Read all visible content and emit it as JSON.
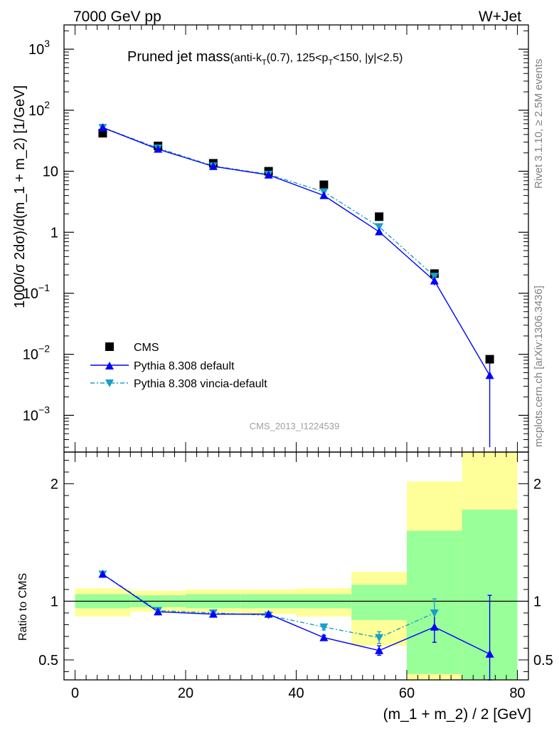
{
  "header": {
    "left_label": "7000 GeV pp",
    "right_label": "W+Jet"
  },
  "title": {
    "main": "Pruned jet mass",
    "sub_open": "(anti-k",
    "sub_k_sub": "T",
    "sub_mid": "(0.7), 125<p",
    "sub_p_sub": "T",
    "sub_close": "<150, |y|<2.5)"
  },
  "side_labels": {
    "rivet": "Rivet 3.1.10, ≥ 2.5M events",
    "mcplots": "mcplots.cern.ch [arXiv:1306.3436]"
  },
  "watermark": "CMS_2013_I1224539",
  "legend": {
    "entries": [
      {
        "label": "CMS",
        "color": "#000000",
        "marker": "square"
      },
      {
        "label": "Pythia 8.308 default",
        "color": "#0000ff",
        "marker": "triangle-up"
      },
      {
        "label": "Pythia 8.308 vincia-default",
        "color": "#1a9fc9",
        "marker": "triangle-down"
      }
    ]
  },
  "chart_data": [
    {
      "type": "scatter",
      "panel": "main",
      "ylabel": "1000/σ 2dσ)/d(m_1 + m_2) [1/GeV]",
      "yscale": "log",
      "ylim": [
        0.00025,
        2500
      ],
      "xlim": [
        -2,
        82
      ],
      "yticks": [
        {
          "value": 0.001,
          "base": "10",
          "exp": "−3"
        },
        {
          "value": 0.01,
          "base": "10",
          "exp": "−2"
        },
        {
          "value": 0.1,
          "base": "10",
          "exp": "−1"
        },
        {
          "value": 1,
          "base": "1",
          "exp": ""
        },
        {
          "value": 10,
          "base": "10",
          "exp": ""
        },
        {
          "value": 100,
          "base": "10",
          "exp": "2"
        },
        {
          "value": 1000,
          "base": "10",
          "exp": "3"
        }
      ],
      "x": [
        5,
        15,
        25,
        35,
        45,
        55,
        65,
        75
      ],
      "series": [
        {
          "name": "CMS",
          "values": [
            42,
            26,
            13.5,
            10,
            6.0,
            1.8,
            0.21,
            0.0083
          ]
        },
        {
          "name": "Pythia 8.308 default",
          "values": [
            52,
            23,
            12,
            8.7,
            4.0,
            1.02,
            0.16,
            0.0045
          ],
          "err_low": [
            0,
            0,
            0,
            0,
            0.2,
            0.08,
            0.025,
            0.0042
          ],
          "err_high": [
            0,
            0,
            0,
            0,
            0.2,
            0.08,
            0.025,
            0.0045
          ]
        },
        {
          "name": "Pythia 8.308 vincia-default",
          "values": [
            52,
            24,
            12.2,
            8.9,
            4.6,
            1.23,
            0.19
          ]
        }
      ]
    },
    {
      "type": "scatter",
      "panel": "ratio",
      "ylabel": "Ratio to CMS",
      "xlabel": "(m_1 + m_2) / 2 [GeV]",
      "ylim": [
        0.33,
        2.27
      ],
      "xlim": [
        -2,
        82
      ],
      "xticks": [
        0,
        20,
        40,
        60,
        80
      ],
      "yticks": [
        0.5,
        1,
        2
      ],
      "bins": [
        {
          "lo": 0,
          "hi": 10,
          "green": [
            0.94,
            1.06
          ],
          "yellow": [
            0.87,
            1.11
          ]
        },
        {
          "lo": 10,
          "hi": 20,
          "green": [
            0.95,
            1.05
          ],
          "yellow": [
            0.91,
            1.09
          ]
        },
        {
          "lo": 20,
          "hi": 30,
          "green": [
            0.94,
            1.06
          ],
          "yellow": [
            0.9,
            1.1
          ]
        },
        {
          "lo": 30,
          "hi": 40,
          "green": [
            0.94,
            1.06
          ],
          "yellow": [
            0.89,
            1.1
          ]
        },
        {
          "lo": 40,
          "hi": 50,
          "green": [
            0.94,
            1.06
          ],
          "yellow": [
            0.87,
            1.11
          ]
        },
        {
          "lo": 50,
          "hi": 60,
          "green": [
            0.84,
            1.14
          ],
          "yellow": [
            0.62,
            1.25
          ]
        },
        {
          "lo": 60,
          "hi": 70,
          "green": [
            0.38,
            1.6
          ],
          "yellow": [
            0.33,
            2.02
          ]
        },
        {
          "lo": 70,
          "hi": 80,
          "green": [
            0.33,
            1.78
          ],
          "yellow": [
            0.33,
            2.27
          ]
        }
      ],
      "series": [
        {
          "name": "Pythia 8.308 default",
          "x": [
            5,
            15,
            25,
            35,
            45,
            55,
            65,
            75
          ],
          "values": [
            1.23,
            0.91,
            0.89,
            0.89,
            0.69,
            0.58,
            0.78,
            0.55
          ],
          "err_low": [
            0,
            0,
            0,
            0,
            0.02,
            0.04,
            0.13,
            0.22
          ],
          "err_high": [
            0,
            0,
            0,
            0,
            0.02,
            0.04,
            0.13,
            0.5
          ]
        },
        {
          "name": "Pythia 8.308 vincia-default",
          "x": [
            5,
            15,
            25,
            35,
            45,
            55,
            65
          ],
          "values": [
            1.23,
            0.92,
            0.9,
            0.88,
            0.78,
            0.69,
            0.9
          ],
          "err_low": [
            0,
            0,
            0,
            0,
            0.025,
            0.05,
            0.12
          ],
          "err_high": [
            0,
            0,
            0,
            0,
            0.025,
            0.05,
            0.12
          ]
        }
      ]
    }
  ]
}
